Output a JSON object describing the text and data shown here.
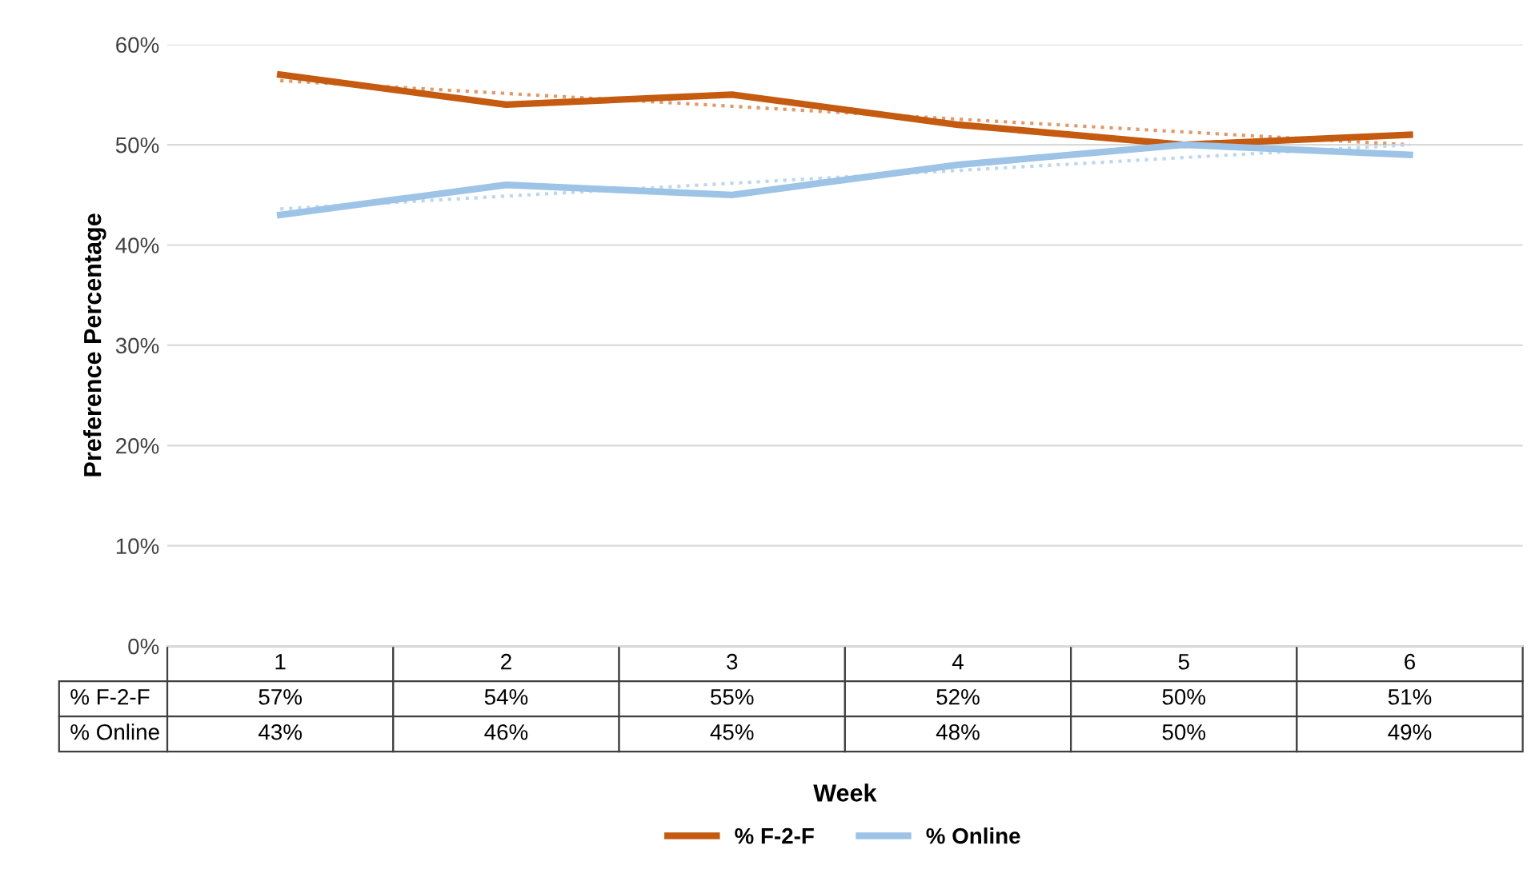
{
  "chart_data": {
    "type": "line",
    "xlabel": "Week",
    "ylabel": "Preference Percentage",
    "categories": [
      "1",
      "2",
      "3",
      "4",
      "5",
      "6"
    ],
    "series": [
      {
        "name": "% F-2-F",
        "color": "#c55a11",
        "values": [
          57,
          54,
          55,
          52,
          50,
          51
        ],
        "value_labels": [
          "57%",
          "54%",
          "55%",
          "52%",
          "50%",
          "51%"
        ]
      },
      {
        "name": "% Online",
        "color": "#9dc3e6",
        "values": [
          43,
          46,
          45,
          48,
          50,
          49
        ],
        "value_labels": [
          "43%",
          "46%",
          "45%",
          "48%",
          "50%",
          "49%"
        ]
      },
      {
        "type": "line",
        "color": "#e0996b",
        "line_style": "dotted",
        "x": [
          "1",
          "6"
        ],
        "values": [
          56.4,
          50.0
        ]
      },
      {
        "type": "line",
        "color": "#bdd7ee",
        "line_style": "dotted",
        "x": [
          "1",
          "6"
        ],
        "values": [
          43.6,
          50.0
        ]
      }
    ],
    "ylim": [
      0,
      60
    ],
    "yticks": [
      {
        "value": 0,
        "label": "0%"
      },
      {
        "value": 10,
        "label": "10%"
      },
      {
        "value": 20,
        "label": "20%"
      },
      {
        "value": 30,
        "label": "30%"
      },
      {
        "value": 40,
        "label": "40%"
      },
      {
        "value": 50,
        "label": "50%"
      },
      {
        "value": 60,
        "label": "60%"
      }
    ],
    "grid": "y",
    "legend": "bottom",
    "marker": "none",
    "line_style": "solid"
  }
}
